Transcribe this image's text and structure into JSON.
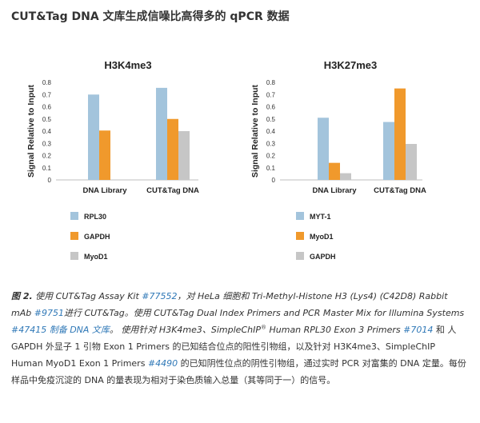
{
  "page_title": "CUT&Tag DNA 文库生成信噪比高得多的 qPCR 数据",
  "colors": {
    "blue": "#a3c4dc",
    "orange": "#f0992c",
    "gray": "#c6c6c6",
    "link": "#2f78b7"
  },
  "chart_data": [
    {
      "type": "bar",
      "title": "H3K4me3",
      "ylabel": "Signal Relative to Input",
      "ylim": [
        0,
        0.8
      ],
      "yticks": [
        "0",
        "0.1",
        "0.2",
        "0.3",
        "0.4",
        "0.5",
        "0.6",
        "0.7",
        "0.8"
      ],
      "categories": [
        "DNA Library",
        "CUT&Tag DNA"
      ],
      "series": [
        {
          "name": "RPL30",
          "color": "#a3c4dc",
          "values": [
            0.7,
            0.755
          ]
        },
        {
          "name": "GAPDH",
          "color": "#f0992c",
          "values": [
            0.405,
            0.5
          ]
        },
        {
          "name": "MyoD1",
          "color": "#c6c6c6",
          "values": [
            0,
            0.4
          ]
        }
      ]
    },
    {
      "type": "bar",
      "title": "H3K27me3",
      "ylabel": "Signal Relative to Input",
      "ylim": [
        0,
        0.8
      ],
      "yticks": [
        "0",
        "0.1",
        "0.2",
        "0.3",
        "0.4",
        "0.5",
        "0.6",
        "0.7",
        "0.8"
      ],
      "categories": [
        "DNA Library",
        "CUT&Tag DNA"
      ],
      "series": [
        {
          "name": "MYT-1",
          "color": "#a3c4dc",
          "values": [
            0.51,
            0.475
          ]
        },
        {
          "name": "MyoD1",
          "color": "#f0992c",
          "values": [
            0.14,
            0.75
          ]
        },
        {
          "name": "GAPDH",
          "color": "#c6c6c6",
          "values": [
            0.055,
            0.295
          ]
        }
      ]
    }
  ],
  "caption": {
    "fig_label": "图 2.",
    "p1": " 使用 CUT&Tag Assay Kit ",
    "l1": "#77552",
    "p2": "，对 HeLa 细胞和 Tri-Methyl-Histone H3 (Lys4) (C42D8) Rabbit mAb ",
    "l2": "#9751",
    "p3": "进行 CUT&Tag。使用 CUT&Tag Dual Index Primers and PCR Master Mix for Illumina Systems ",
    "l3": "#47415 制备 DNA 文库",
    "p4": "。 使用针对 H3K4me3、SimpleChIP",
    "sup": "®",
    "p5": " Human RPL30 Exon 3 Primers ",
    "l4": "#7014",
    "p6": " 和 人 GAPDH 外显子 1 引物 Exon 1 Primers 的已知结合位点的阳性引物组，以及针对 H3K4me3、SimpleChIP Human MyoD1 Exon 1 Primers ",
    "l5": "#4490",
    "p7": " 的已知阴性位点的阴性引物组，通过实时 PCR 对富集的 DNA 定量。每份样品中免疫沉淀的 DNA 的量表现为相对于染色质输入总量（其等同于一）的信号。"
  }
}
